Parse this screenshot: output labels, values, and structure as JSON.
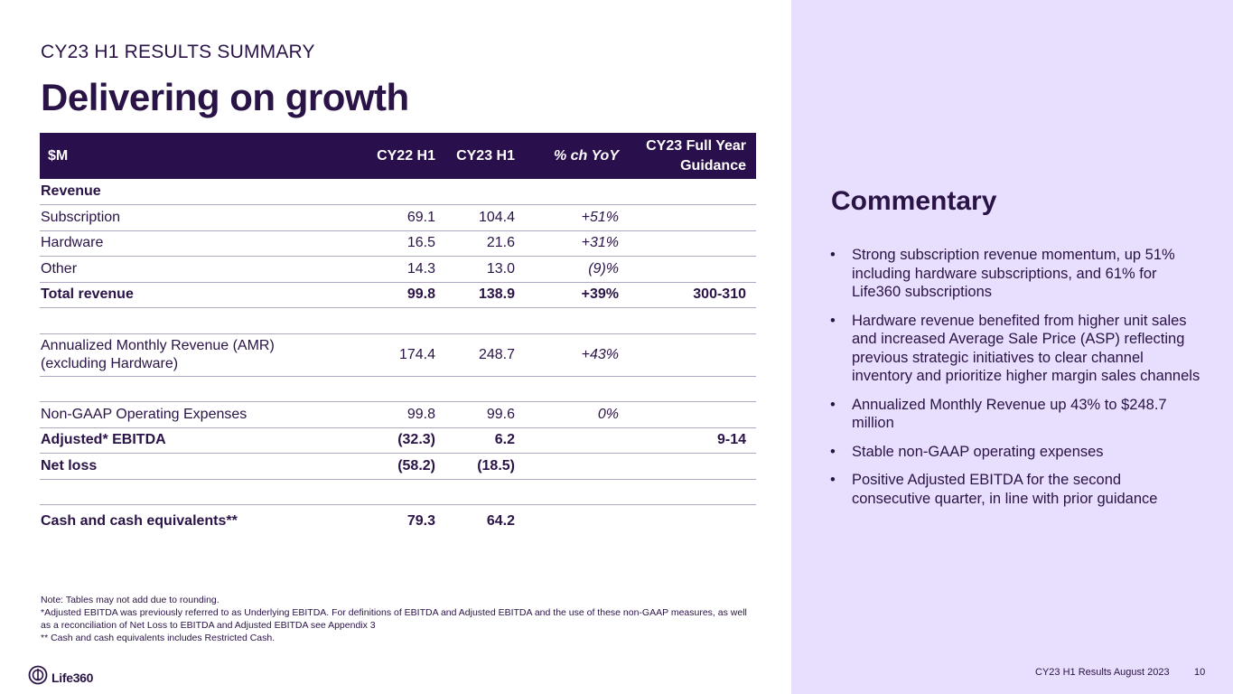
{
  "slide": {
    "kicker": "CY23 H1 RESULTS SUMMARY",
    "title": "Delivering on growth"
  },
  "table": {
    "headers": [
      "$M",
      "CY22 H1",
      "CY23 H1",
      "% ch YoY",
      "CY23 Full Year Guidance"
    ],
    "rows": [
      {
        "cells": [
          "Revenue",
          "",
          "",
          "",
          ""
        ]
      },
      {
        "cells": [
          "Subscription",
          "69.1",
          "104.4",
          "+51%",
          ""
        ]
      },
      {
        "cells": [
          "Hardware",
          "16.5",
          "21.6",
          "+31%",
          ""
        ]
      },
      {
        "cells": [
          "Other",
          "14.3",
          "13.0",
          "(9)%",
          ""
        ]
      },
      {
        "cells": [
          "Total revenue",
          "99.8",
          "138.9",
          "+39%",
          "300-310"
        ]
      },
      {
        "cells": [
          "",
          "",
          "",
          "",
          ""
        ]
      },
      {
        "cells": [
          "Annualized Monthly Revenue (AMR) (excluding Hardware)",
          "174.4",
          "248.7",
          "+43%",
          ""
        ]
      },
      {
        "cells": [
          "",
          "",
          "",
          "",
          ""
        ]
      },
      {
        "cells": [
          "Non-GAAP Operating Expenses",
          "99.8",
          "99.6",
          "0%",
          ""
        ]
      },
      {
        "cells": [
          "Adjusted* EBITDA",
          "(32.3)",
          "6.2",
          "",
          "9-14"
        ]
      },
      {
        "cells": [
          "Net loss",
          "(58.2)",
          "(18.5)",
          "",
          ""
        ]
      },
      {
        "cells": [
          "",
          "",
          "",
          "",
          ""
        ]
      },
      {
        "cells": [
          "Cash and cash equivalents**",
          "79.3",
          "64.2",
          "",
          ""
        ]
      }
    ]
  },
  "notes": [
    "Note: Tables may not add due to rounding.",
    "*Adjusted EBITDA was previously referred to as Underlying EBITDA. For definitions of EBITDA and Adjusted EBITDA and the use of these non-GAAP measures, as well as a reconciliation of Net Loss to EBITDA and Adjusted EBITDA see Appendix 3",
    "** Cash and cash equivalents includes Restricted Cash."
  ],
  "commentary": {
    "title": "Commentary",
    "bullets": [
      "Strong subscription revenue momentum, up 51% including hardware subscriptions, and 61% for Life360 subscriptions",
      "Hardware revenue benefited from higher unit sales and increased Average Sale Price (ASP) reflecting previous strategic initiatives to clear channel inventory and prioritize higher margin sales channels",
      "Annualized Monthly Revenue up 43% to $248.7 million",
      "Stable non-GAAP operating expenses",
      "Positive Adjusted EBITDA for the second consecutive quarter, in line with prior guidance"
    ]
  },
  "footer": {
    "logo_text": "Life360",
    "logo_icon": "life360-logo-icon",
    "text": "CY23 H1 Results August 2023",
    "page_number": "10"
  },
  "colors": {
    "primary": "#2a1346",
    "header_bg": "#2a0f4d",
    "panel_bg": "#e8defd",
    "rule": "#b0a7c2"
  }
}
